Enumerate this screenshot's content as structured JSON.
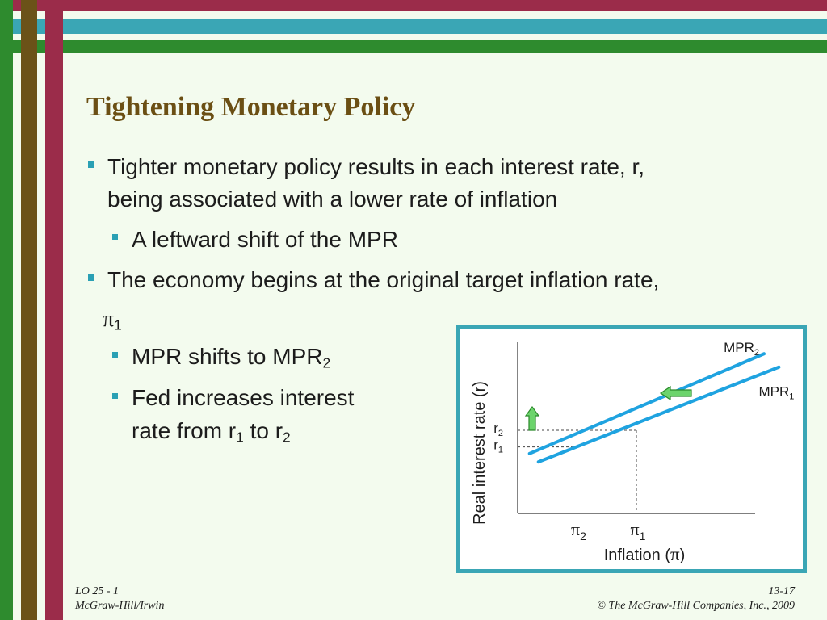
{
  "slide": {
    "title": "Tightening Monetary Policy",
    "bullets": {
      "b1_line1": "Tighter monetary policy results in each interest rate, r,",
      "b1_line2": "being associated with a lower rate of inflation",
      "b1_sub1": "A leftward shift of the MPR",
      "b2_line1": "The economy begins at the original target inflation rate,",
      "b2_pi": "π",
      "b2_pi_sub": "1",
      "b2_sub1_text": "MPR shifts to MPR",
      "b2_sub1_sub": "2",
      "b2_sub2_line1": "Fed increases interest",
      "b2_sub2_line2_a": "rate from r",
      "b2_sub2_line2_sub1": "1",
      "b2_sub2_line2_b": " to r",
      "b2_sub2_line2_sub2": "2"
    }
  },
  "colors": {
    "frame_red": "#9b2c4a",
    "frame_teal": "#3aa6b5",
    "frame_green": "#2e8b2e",
    "frame_brown": "#6b5218",
    "title": "#6b4f14",
    "curve": "#1fa3e0",
    "arrow_fill": "#6cd46c",
    "arrow_stroke": "#2b8a2b"
  },
  "chart_data": {
    "type": "line",
    "xlabel_prefix": "Inflation (",
    "xlabel_symbol": "π",
    "xlabel_suffix": ")",
    "ylabel": "Real interest rate  (r)",
    "x_ticks": [
      {
        "symbol": "π",
        "sub": "2",
        "x": 2
      },
      {
        "symbol": "π",
        "sub": "1",
        "x": 4
      }
    ],
    "y_ticks": [
      {
        "base": "r",
        "sub": "2",
        "y": 5
      },
      {
        "base": "r",
        "sub": "1",
        "y": 4
      }
    ],
    "xlim": [
      0,
      8
    ],
    "ylim": [
      0,
      10
    ],
    "series": [
      {
        "name": "MPR",
        "sub": "2",
        "points": [
          [
            0.4,
            3.6
          ],
          [
            8.3,
            9.6
          ]
        ]
      },
      {
        "name": "MPR",
        "sub": "1",
        "points": [
          [
            0.7,
            3.1
          ],
          [
            8.8,
            8.8
          ]
        ]
      }
    ],
    "annotations": [
      {
        "type": "arrow",
        "direction": "left",
        "meaning": "leftward shift of the MPR"
      },
      {
        "type": "arrow",
        "direction": "up",
        "meaning": "interest rate rises from r1 to r2"
      }
    ]
  },
  "footer": {
    "lo": "LO 25 - 1",
    "publisher": "McGraw-Hill/Irwin",
    "page": "13-17",
    "copyright": "© The McGraw-Hill Companies, Inc., 2009"
  }
}
